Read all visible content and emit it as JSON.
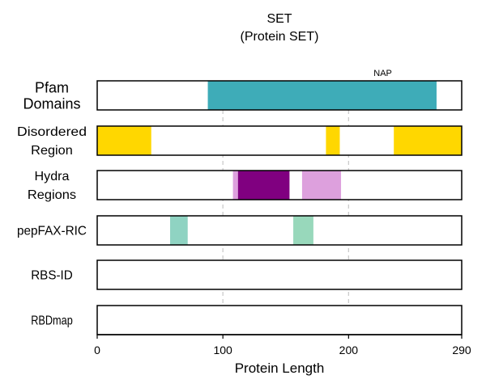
{
  "chart_data": {
    "type": "bar",
    "title": "SET",
    "subtitle": "(Protein SET)",
    "xlabel": "Protein Length",
    "xlim": [
      0,
      290
    ],
    "xticks": [
      0,
      100,
      200,
      290
    ],
    "xtick_labels": [
      "0",
      "100",
      "200",
      "290"
    ],
    "grid_x": [
      100,
      200
    ],
    "grid_color": "#cccccc",
    "tracks": [
      {
        "label_lines": [
          "Pfam",
          "Domains"
        ],
        "segments": [
          {
            "start": 88,
            "end": 270,
            "color": "#3eacb8",
            "label": "NAP"
          }
        ]
      },
      {
        "label_lines": [
          "Disordered",
          "Region"
        ],
        "segments": [
          {
            "start": 0,
            "end": 43,
            "color": "#ffd700"
          },
          {
            "start": 182,
            "end": 193,
            "color": "#ffd700"
          },
          {
            "start": 236,
            "end": 290,
            "color": "#ffd700"
          }
        ]
      },
      {
        "label_lines": [
          "Hydra",
          "Regions"
        ],
        "segments": [
          {
            "start": 108,
            "end": 112,
            "color": "#dda0dd"
          },
          {
            "start": 112,
            "end": 153,
            "color": "#800080"
          },
          {
            "start": 163,
            "end": 194,
            "color": "#dda0dd"
          }
        ]
      },
      {
        "label_lines": [
          "pepFAX-RIC"
        ],
        "segments": [
          {
            "start": 58,
            "end": 72,
            "color": "#8fd3c2"
          },
          {
            "start": 156,
            "end": 172,
            "color": "#98d8bb"
          }
        ]
      },
      {
        "label_lines": [
          "RBS-ID"
        ],
        "segments": []
      },
      {
        "label_lines": [
          "RBDmap"
        ],
        "segments": []
      }
    ]
  }
}
